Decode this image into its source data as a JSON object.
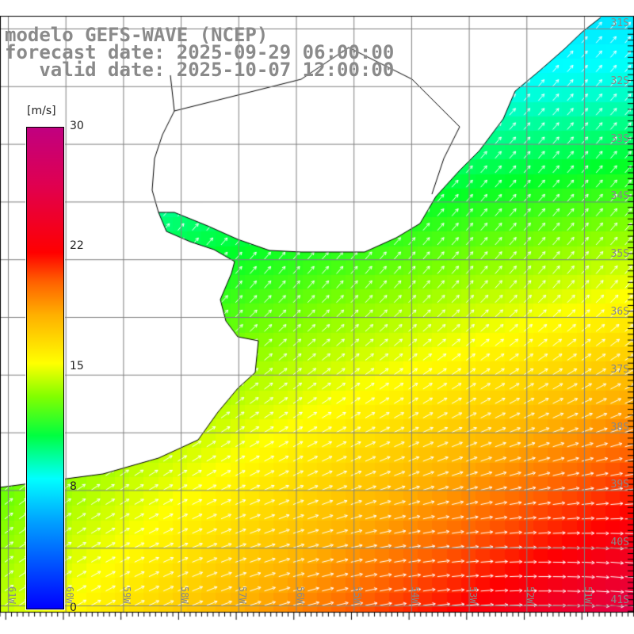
{
  "title": {
    "line1": "modelo GEFS-WAVE (NCEP)",
    "line2": "forecast date: 2025-09-29 06:00:00",
    "line3": "   valid date: 2025-10-07 12:00:00"
  },
  "colorbar": {
    "unit": "[m/s]",
    "ticks": [
      "30",
      "22",
      "15",
      "8",
      "0"
    ],
    "tick_values": [
      30,
      22,
      15,
      8,
      0
    ]
  },
  "latitude_labels": [
    "31S",
    "32S",
    "33S",
    "34S",
    "35S",
    "36S",
    "37S",
    "38S",
    "39S",
    "40S",
    "41S"
  ],
  "longitude_labels": [
    "61W",
    "60W",
    "59W",
    "58W",
    "57W",
    "56W",
    "55W",
    "54W",
    "53W",
    "52W",
    "51W"
  ],
  "colors": {
    "land": "#ffffff",
    "grid": "#808080",
    "coast": "#000000",
    "arrows": "#ffffff",
    "text": "#8a8a8a"
  }
}
